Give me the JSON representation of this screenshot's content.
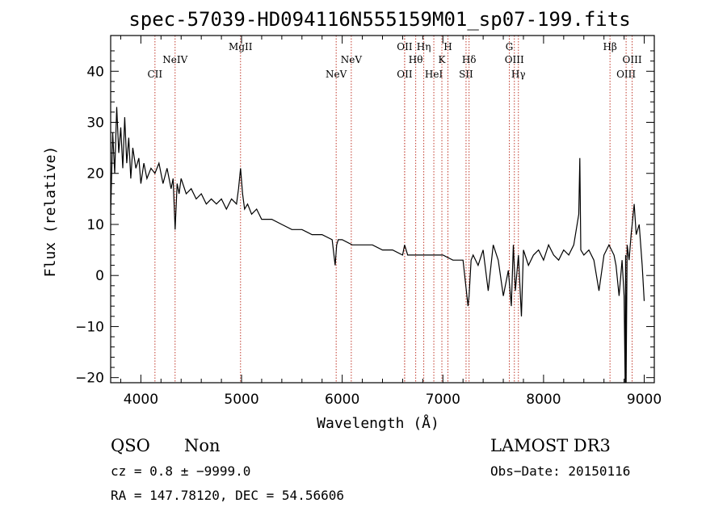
{
  "chart_data": {
    "type": "line",
    "title": "spec-57039-HD094116N555159M01_sp07-199.fits",
    "xlabel": "Wavelength (Å)",
    "ylabel": "Flux (relative)",
    "xlim": [
      3700,
      9100
    ],
    "ylim": [
      -21,
      47
    ],
    "x_ticks": [
      4000,
      5000,
      6000,
      7000,
      8000,
      9000
    ],
    "x_tick_labels": [
      "4000",
      "5000",
      "6000",
      "7000",
      "8000",
      "9000"
    ],
    "y_ticks": [
      -20,
      -10,
      0,
      10,
      20,
      30,
      40
    ],
    "y_tick_labels": [
      "−20",
      "−10",
      "0",
      "10",
      "20",
      "30",
      "40"
    ],
    "spectral_lines": [
      {
        "label": "CII",
        "wavelength": 4140,
        "row": "low"
      },
      {
        "label": "NeIV",
        "wavelength": 4340,
        "row": "mid"
      },
      {
        "label": "MgII",
        "wavelength": 4990,
        "row": "high"
      },
      {
        "label": "NeV",
        "wavelength": 5940,
        "row": "low"
      },
      {
        "label": "NeV",
        "wavelength": 6090,
        "row": "mid"
      },
      {
        "label": "OII",
        "wavelength": 6620,
        "row": "high"
      },
      {
        "label": "OII",
        "wavelength": 6620,
        "row": "low"
      },
      {
        "label": "Hθ",
        "wavelength": 6730,
        "row": "mid"
      },
      {
        "label": "Hη",
        "wavelength": 6810,
        "row": "high"
      },
      {
        "label": "HeI",
        "wavelength": 6910,
        "row": "low"
      },
      {
        "label": "K",
        "wavelength": 6990,
        "row": "mid"
      },
      {
        "label": "H",
        "wavelength": 7050,
        "row": "high"
      },
      {
        "label": "Hδ",
        "wavelength": 7260,
        "row": "mid"
      },
      {
        "label": "SII",
        "wavelength": 7230,
        "row": "low"
      },
      {
        "label": "G",
        "wavelength": 7660,
        "row": "high"
      },
      {
        "label": "OIII",
        "wavelength": 7710,
        "row": "mid"
      },
      {
        "label": "Hγ",
        "wavelength": 7750,
        "row": "low"
      },
      {
        "label": "Hβ",
        "wavelength": 8660,
        "row": "high"
      },
      {
        "label": "OIII",
        "wavelength": 8820,
        "row": "low"
      },
      {
        "label": "OIII",
        "wavelength": 8880,
        "row": "mid"
      }
    ],
    "series": [
      {
        "name": "flux",
        "x": [
          3700,
          3720,
          3740,
          3760,
          3780,
          3800,
          3820,
          3840,
          3860,
          3880,
          3900,
          3920,
          3950,
          3980,
          4000,
          4030,
          4060,
          4100,
          4140,
          4180,
          4220,
          4260,
          4300,
          4320,
          4340,
          4360,
          4380,
          4400,
          4450,
          4500,
          4550,
          4600,
          4650,
          4700,
          4750,
          4800,
          4850,
          4900,
          4950,
          4970,
          4990,
          5010,
          5030,
          5060,
          5100,
          5150,
          5200,
          5300,
          5400,
          5500,
          5600,
          5700,
          5800,
          5900,
          5930,
          5945,
          5960,
          6000,
          6100,
          6200,
          6300,
          6400,
          6500,
          6600,
          6620,
          6650,
          6700,
          6800,
          6900,
          7000,
          7100,
          7200,
          7250,
          7260,
          7280,
          7300,
          7350,
          7400,
          7450,
          7500,
          7550,
          7600,
          7650,
          7680,
          7700,
          7720,
          7750,
          7780,
          7800,
          7850,
          7900,
          7950,
          8000,
          8050,
          8100,
          8150,
          8200,
          8250,
          8300,
          8350,
          8360,
          8370,
          8400,
          8450,
          8500,
          8550,
          8600,
          8650,
          8700,
          8720,
          8750,
          8780,
          8800,
          8810,
          8815,
          8820,
          8830,
          8850,
          8870,
          8880,
          8900,
          8920,
          8950,
          8980,
          9000
        ],
        "y": [
          12,
          28,
          20,
          33,
          24,
          29,
          21,
          31,
          22,
          27,
          19,
          25,
          21,
          23,
          18,
          22,
          19,
          21,
          20,
          22,
          18,
          21,
          17,
          19,
          9,
          18,
          16,
          19,
          16,
          17,
          15,
          16,
          14,
          15,
          14,
          15,
          13,
          15,
          14,
          17,
          21,
          16,
          13,
          14,
          12,
          13,
          11,
          11,
          10,
          9,
          9,
          8,
          8,
          7,
          2,
          6,
          7,
          7,
          6,
          6,
          6,
          5,
          5,
          4,
          6,
          4,
          4,
          4,
          4,
          4,
          3,
          3,
          -6,
          -4,
          3,
          4,
          2,
          5,
          -3,
          6,
          3,
          -4,
          1,
          -6,
          6,
          -3,
          4,
          -8,
          5,
          2,
          4,
          5,
          3,
          6,
          4,
          3,
          5,
          4,
          6,
          12,
          23,
          5,
          4,
          5,
          3,
          -3,
          4,
          6,
          4,
          2,
          -4,
          3,
          -4,
          -21,
          4,
          -21,
          6,
          3,
          8,
          10,
          14,
          8,
          10,
          2,
          -5
        ]
      }
    ]
  },
  "footer": {
    "object_class": "QSO",
    "subclass": "Non",
    "survey": "LAMOST DR3",
    "cz_line": "cz = 0.8 ± −9999.0",
    "obs_date": "Obs−Date: 20150116",
    "coords": "RA = 147.78120, DEC =  54.56606"
  },
  "colors": {
    "line": "#000000",
    "marker": "#c0392b"
  }
}
